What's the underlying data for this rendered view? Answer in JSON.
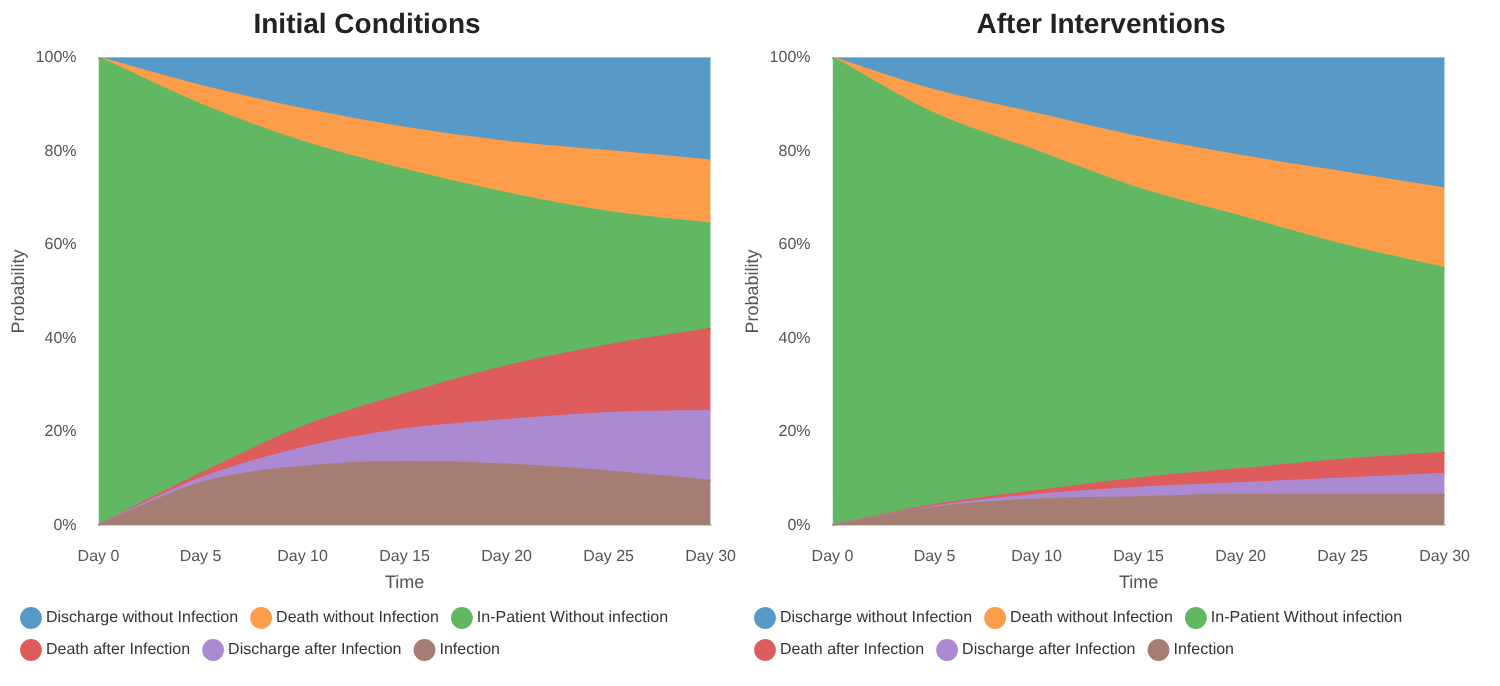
{
  "chart_data": [
    {
      "type": "area",
      "title": "Initial Conditions",
      "xlabel": "Time",
      "ylabel": "Probability",
      "stacked": true,
      "grid": false,
      "legend": "bottom",
      "marker": "none",
      "categories": [
        "Day 0",
        "Day 5",
        "Day 10",
        "Day 15",
        "Day 20",
        "Day 25",
        "Day 30"
      ],
      "ylim": [
        0,
        100
      ],
      "yticks": [
        {
          "value": 0,
          "label": "0%"
        },
        {
          "value": 20,
          "label": "20%"
        },
        {
          "value": 40,
          "label": "40%"
        },
        {
          "value": 60,
          "label": "60%"
        },
        {
          "value": 80,
          "label": "80%"
        },
        {
          "value": 100,
          "label": "100%"
        }
      ],
      "series": [
        {
          "name": "Infection",
          "color": "#a67d73",
          "values": [
            0,
            9,
            12.5,
            13.5,
            13,
            11.5,
            9.5
          ]
        },
        {
          "name": "Discharge after Infection",
          "color": "#ac8ad1",
          "values": [
            0,
            1,
            4,
            7,
            9.5,
            12.5,
            15
          ]
        },
        {
          "name": "Death after Infection",
          "color": "#de5c5c",
          "values": [
            0,
            1,
            4.5,
            7.5,
            11.5,
            14.5,
            17.5
          ]
        },
        {
          "name": "In-Patient Without infection",
          "color": "#62b862",
          "values": [
            100,
            79,
            61,
            48,
            37,
            28.5,
            22.5
          ]
        },
        {
          "name": "Death without Infection",
          "color": "#fe9d49",
          "values": [
            0,
            4,
            7,
            9,
            11,
            13,
            13.5
          ]
        },
        {
          "name": "Discharge without Infection",
          "color": "#5799c7",
          "values": [
            0,
            6,
            11,
            15,
            18,
            20,
            22
          ]
        }
      ]
    },
    {
      "type": "area",
      "title": "After Interventions",
      "xlabel": "Time",
      "ylabel": "Probability",
      "stacked": true,
      "grid": false,
      "legend": "bottom",
      "marker": "none",
      "categories": [
        "Day 0",
        "Day 5",
        "Day 10",
        "Day 15",
        "Day 20",
        "Day 25",
        "Day 30"
      ],
      "ylim": [
        0,
        100
      ],
      "yticks": [
        {
          "value": 0,
          "label": "0%"
        },
        {
          "value": 20,
          "label": "20%"
        },
        {
          "value": 40,
          "label": "40%"
        },
        {
          "value": 60,
          "label": "60%"
        },
        {
          "value": 80,
          "label": "80%"
        },
        {
          "value": 100,
          "label": "100%"
        }
      ],
      "series": [
        {
          "name": "Infection",
          "color": "#a67d73",
          "values": [
            0,
            3.8,
            5.5,
            6,
            6.5,
            6.5,
            6.5
          ]
        },
        {
          "name": "Discharge after Infection",
          "color": "#ac8ad1",
          "values": [
            0,
            0.2,
            1,
            2,
            2.5,
            3.5,
            4.5
          ]
        },
        {
          "name": "Death after Infection",
          "color": "#de5c5c",
          "values": [
            0,
            0.3,
            0.8,
            2,
            3,
            4,
            4.5
          ]
        },
        {
          "name": "In-Patient Without infection",
          "color": "#62b862",
          "values": [
            100,
            83.7,
            72.7,
            62,
            54,
            46,
            39.5
          ]
        },
        {
          "name": "Death without Infection",
          "color": "#fe9d49",
          "values": [
            0,
            5,
            8,
            11,
            13,
            15.5,
            17
          ]
        },
        {
          "name": "Discharge without Infection",
          "color": "#5799c7",
          "values": [
            0,
            7,
            12,
            17,
            21,
            24.5,
            28
          ]
        }
      ]
    }
  ]
}
